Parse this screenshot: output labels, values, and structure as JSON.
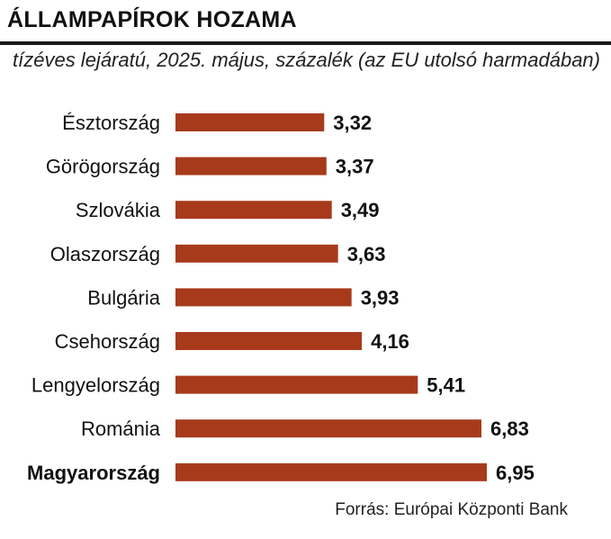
{
  "title": "ÁLLAMPAPÍROK HOZAMA",
  "subtitle": "tízéves lejáratú, 2025. május, százalék (az EU utolsó harmadában)",
  "source": "Forrás: Európai Központi Bank",
  "colors": {
    "bar": "#a83a1c",
    "text": "#111111"
  },
  "chart_data": {
    "type": "bar",
    "orientation": "horizontal",
    "title": "ÁLLAMPAPÍROK HOZAMA",
    "subtitle": "tízéves lejáratú, 2025. május, százalék (az EU utolsó harmadában)",
    "categories": [
      "Észtország",
      "Görögország",
      "Szlovákia",
      "Olaszország",
      "Bulgária",
      "Csehország",
      "Lengyelország",
      "Románia",
      "Magyarország"
    ],
    "values": [
      3.32,
      3.37,
      3.49,
      3.63,
      3.93,
      4.16,
      5.41,
      6.83,
      6.95
    ],
    "value_labels": [
      "3,32",
      "3,37",
      "3,49",
      "3,63",
      "3,93",
      "4,16",
      "5,41",
      "6,83",
      "6,95"
    ],
    "highlight": "Magyarország",
    "xlim": [
      0,
      6.95
    ],
    "grid": false,
    "legend": "none"
  }
}
